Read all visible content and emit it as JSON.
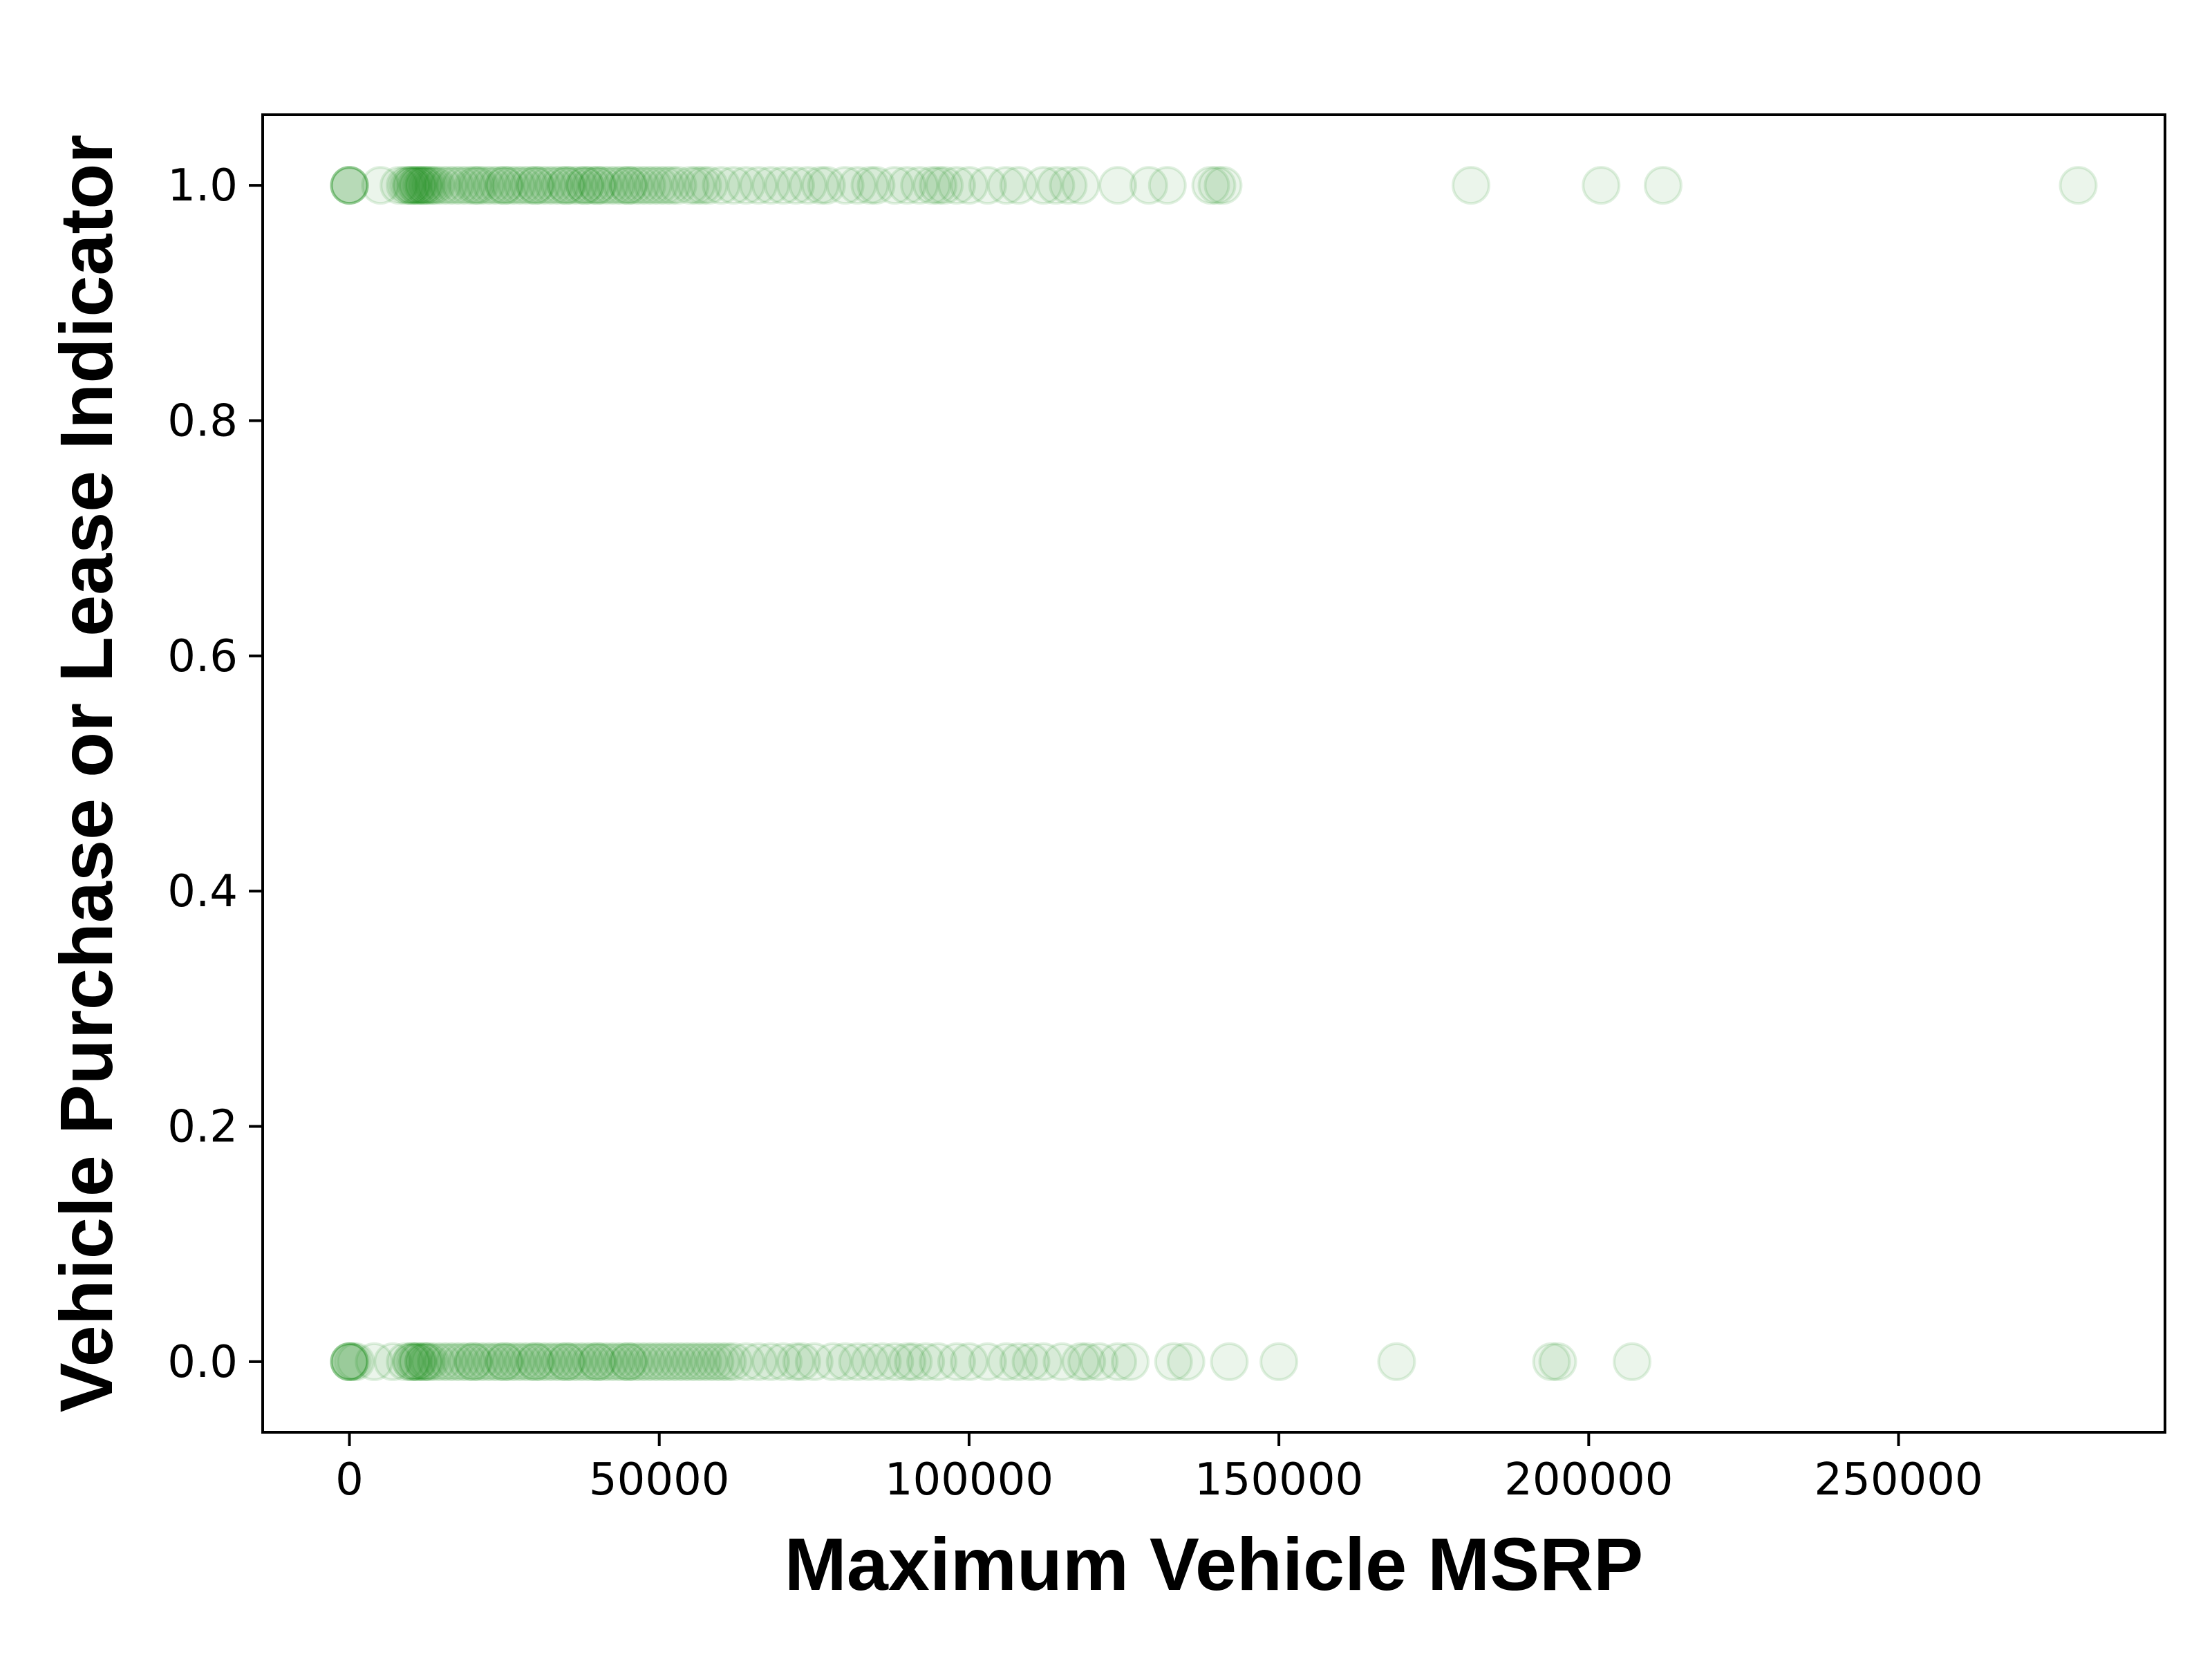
{
  "chart_data": {
    "type": "scatter",
    "title": "",
    "xlabel": "Maximum Vehicle MSRP",
    "ylabel": "Vehicle Purchase or Lease Indicator",
    "xlim": [
      -14000,
      293000
    ],
    "ylim": [
      -0.06,
      1.06
    ],
    "x_ticks": [
      0,
      50000,
      100000,
      150000,
      200000,
      250000
    ],
    "x_tick_labels": [
      "0",
      "50000",
      "100000",
      "150000",
      "200000",
      "250000"
    ],
    "y_ticks": [
      0.0,
      0.2,
      0.4,
      0.6,
      0.8,
      1.0
    ],
    "y_tick_labels": [
      "0.0",
      "0.2",
      "0.4",
      "0.6",
      "0.8",
      "1.0"
    ],
    "grid": false,
    "legend": false,
    "marker_color": "#008000",
    "marker_alpha": 0.08,
    "series": [
      {
        "values_y1_x": [
          0,
          0,
          0,
          0,
          5000,
          8000,
          9000,
          9500,
          10000,
          10000,
          10500,
          11000,
          11000,
          11500,
          12000,
          12000,
          12500,
          13000,
          13500,
          14000,
          15000,
          16000,
          17000,
          18000,
          19000,
          20000,
          20500,
          21000,
          22000,
          23000,
          24000,
          25000,
          25000,
          26000,
          27000,
          28000,
          29000,
          30000,
          30000,
          31000,
          32000,
          33000,
          34000,
          35000,
          35000,
          36000,
          37000,
          38000,
          38000,
          39000,
          40000,
          40000,
          41000,
          42000,
          43000,
          44000,
          45000,
          45000,
          46000,
          47000,
          48000,
          49000,
          50000,
          51000,
          52000,
          53000,
          55000,
          56000,
          57000,
          58000,
          60000,
          62000,
          64000,
          66000,
          68000,
          70000,
          72000,
          74000,
          76000,
          77000,
          80000,
          82000,
          84000,
          85000,
          88000,
          90000,
          92000,
          94000,
          95000,
          96000,
          98000,
          100000,
          103000,
          106000,
          108000,
          112000,
          114000,
          116000,
          118000,
          124000,
          129000,
          132000,
          139000,
          140000,
          141000,
          181000,
          202000,
          212000,
          279000
        ],
        "values_y0_x": [
          0,
          0,
          0,
          0,
          500,
          1000,
          4000,
          7000,
          9000,
          10000,
          10000,
          10500,
          11000,
          11000,
          12000,
          12000,
          12500,
          13000,
          14000,
          15000,
          16000,
          17000,
          18000,
          19000,
          20000,
          20000,
          21000,
          22000,
          23000,
          24000,
          25000,
          25000,
          26000,
          27000,
          28000,
          29000,
          30000,
          30000,
          31000,
          32000,
          33000,
          34000,
          35000,
          35000,
          36000,
          37000,
          38000,
          39000,
          40000,
          40000,
          41000,
          42000,
          43000,
          44000,
          45000,
          45000,
          46000,
          47000,
          48000,
          49000,
          50000,
          51000,
          52000,
          53000,
          54000,
          55000,
          56000,
          57000,
          58000,
          59000,
          60000,
          61000,
          62000,
          64000,
          66000,
          68000,
          70000,
          72000,
          73000,
          75000,
          78000,
          80000,
          82000,
          84000,
          86000,
          88000,
          90000,
          91000,
          93000,
          95000,
          98000,
          100000,
          103000,
          106000,
          108000,
          110000,
          112000,
          115000,
          118000,
          119000,
          121000,
          124000,
          126000,
          133000,
          135000,
          142000,
          150000,
          169000,
          194000,
          195000,
          207000
        ]
      }
    ]
  }
}
